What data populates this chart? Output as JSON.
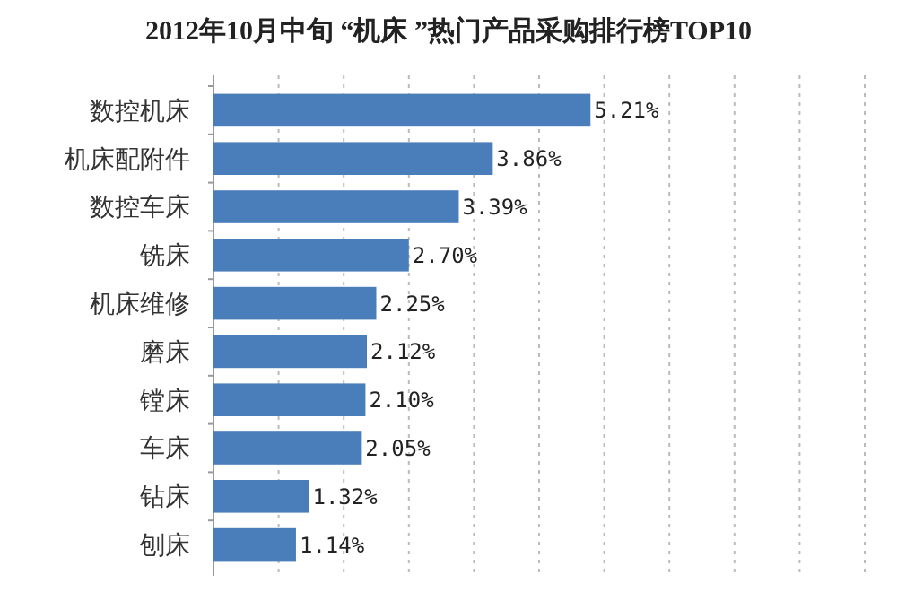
{
  "chart_data": {
    "type": "bar",
    "orientation": "horizontal",
    "title": "2012年10月中旬 “机床 ”热门产品采购排行榜TOP10",
    "categories": [
      "数控机床",
      "机床配附件",
      "数控车床",
      "铣床",
      "机床维修",
      "磨床",
      "镗床",
      "车床",
      "钻床",
      "刨床"
    ],
    "values": [
      5.21,
      3.86,
      3.39,
      2.7,
      2.25,
      2.12,
      2.1,
      2.05,
      1.32,
      1.14
    ],
    "value_labels": [
      "5.21%",
      "3.86%",
      "3.39%",
      "2.70%",
      "2.25%",
      "2.12%",
      "2.10%",
      "2.05%",
      "1.32%",
      "1.14%"
    ],
    "color": "#4a7ebb",
    "xlim": [
      0,
      9
    ],
    "xticks": [
      {
        "value": 0,
        "label": null
      },
      {
        "value": 0.9,
        "label": null
      },
      {
        "value": 1.8,
        "label": null
      },
      {
        "value": 2.7,
        "label": null
      },
      {
        "value": 3.6,
        "label": null
      },
      {
        "value": 4.5,
        "label": null
      },
      {
        "value": 5.4,
        "label": null
      },
      {
        "value": 6.3,
        "label": null
      },
      {
        "value": 7.2,
        "label": null
      },
      {
        "value": 8.1,
        "label": null
      },
      {
        "value": 9,
        "label": null
      }
    ],
    "grid": "x",
    "tick_labels": "y"
  }
}
